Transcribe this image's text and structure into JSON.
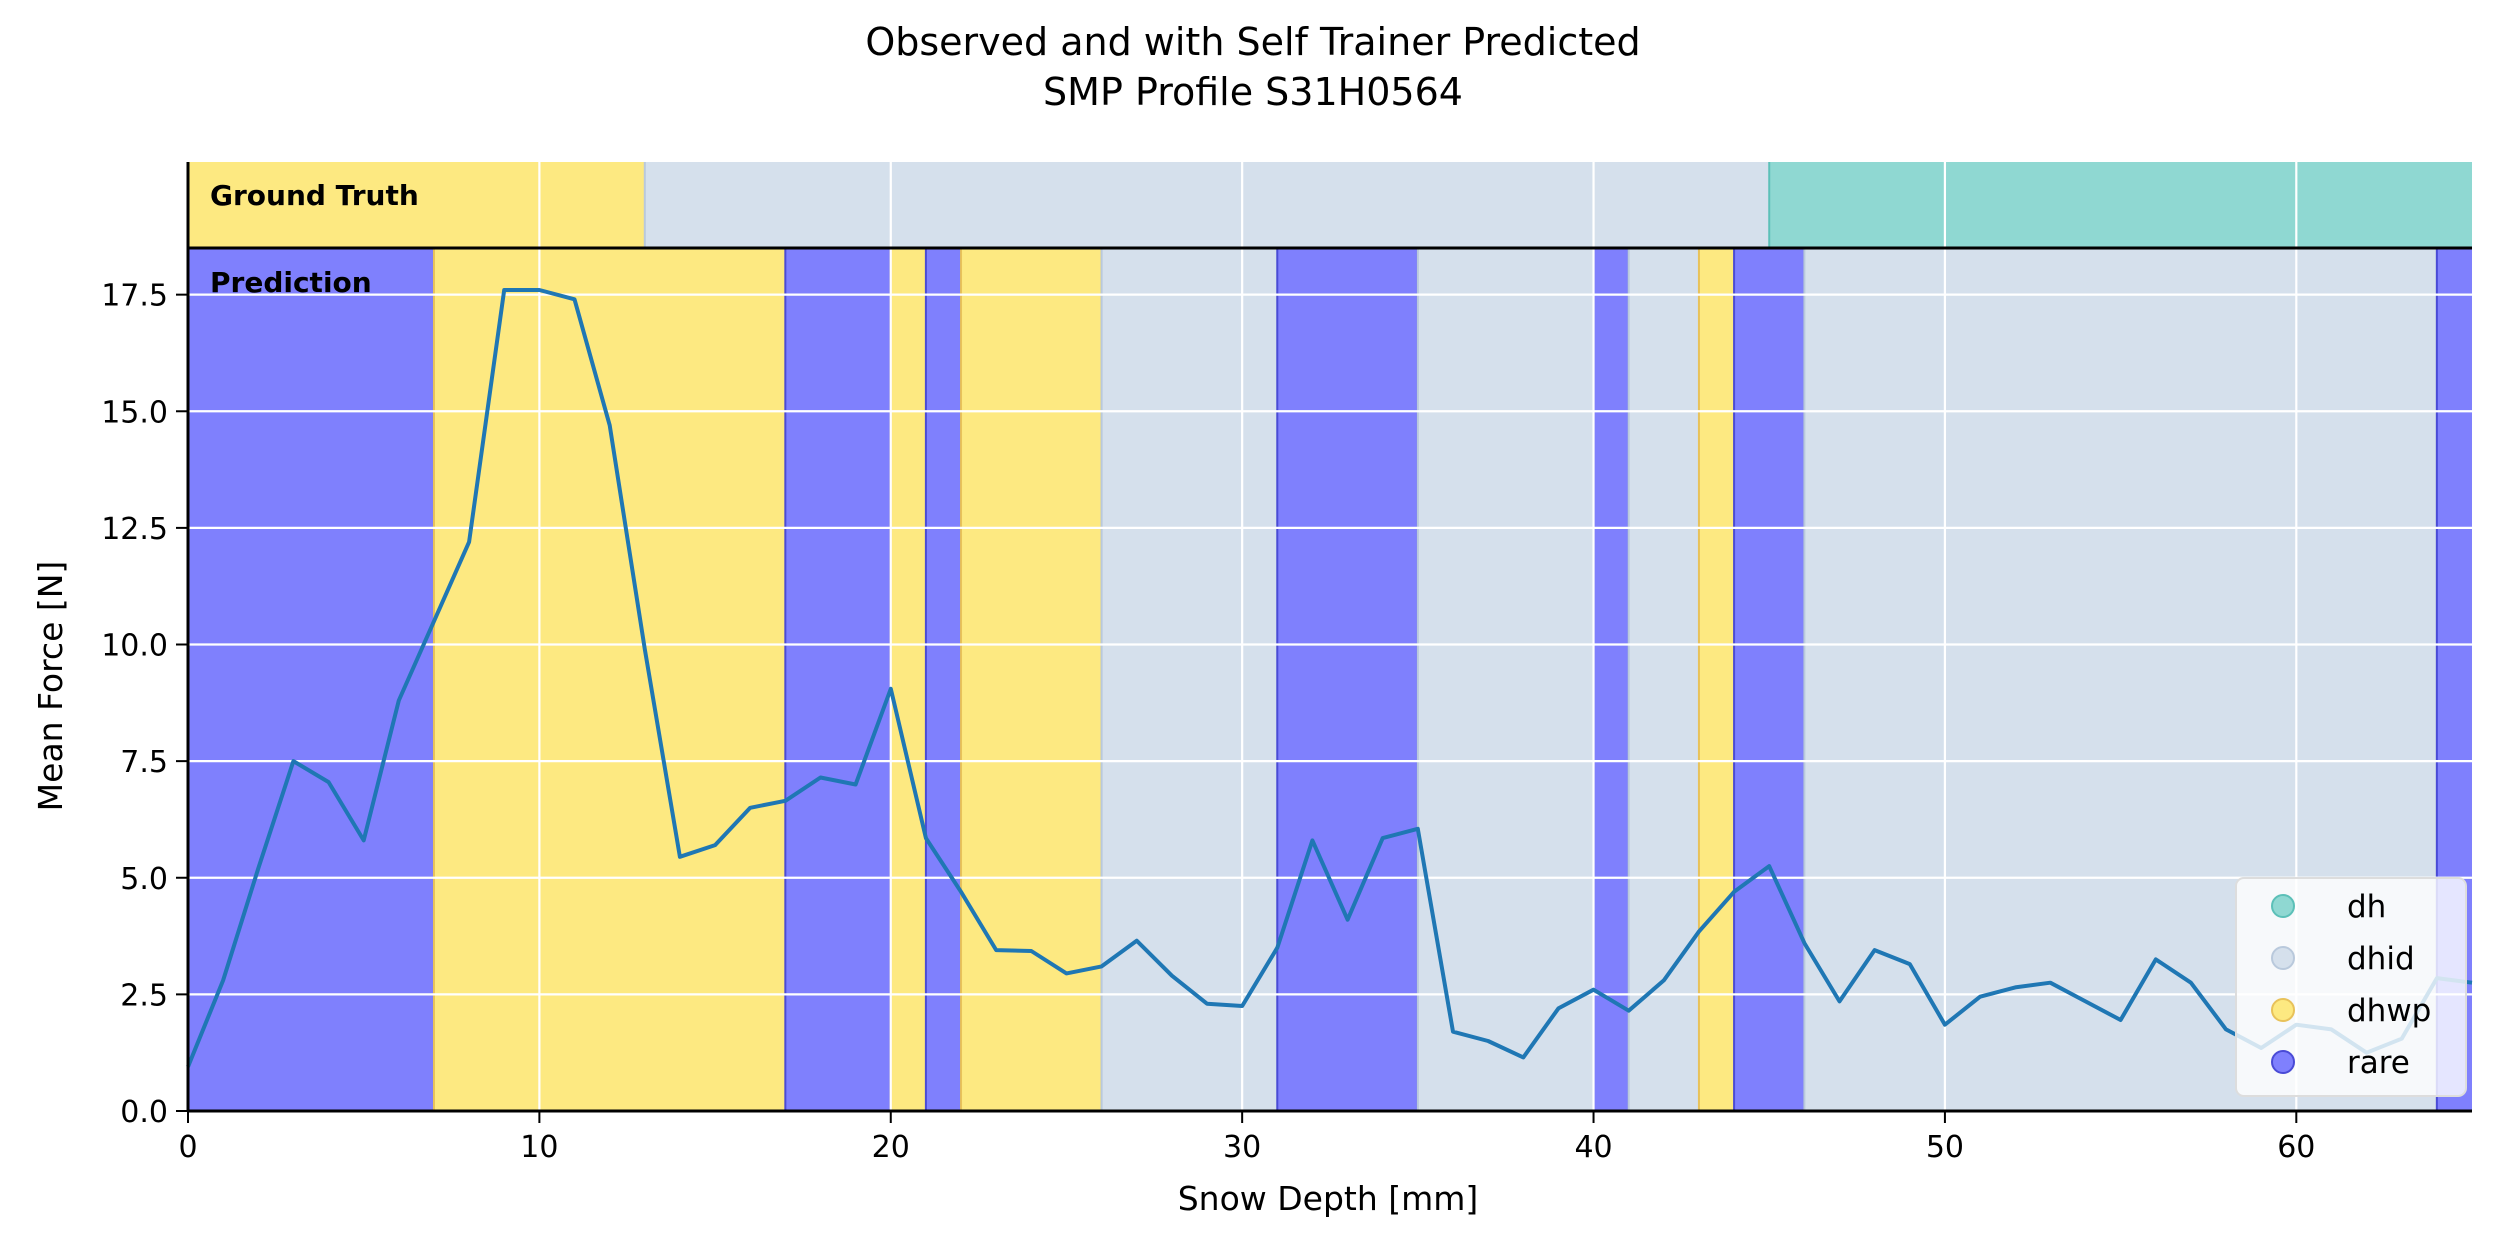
{
  "chart_data": {
    "type": "line",
    "title": "Observed and with Self Trainer Predicted",
    "subtitle": "SMP Profile S31H0564",
    "xlabel": "Snow Depth [mm]",
    "ylabel": "Mean Force [N]",
    "xlim": [
      0,
      65
    ],
    "ylim": [
      0,
      18.5
    ],
    "x_ticks": [
      0,
      10,
      20,
      30,
      40,
      50,
      60
    ],
    "y_ticks": [
      0.0,
      2.5,
      5.0,
      7.5,
      10.0,
      12.5,
      15.0,
      17.5
    ],
    "grid": true,
    "legend_position": "bottom-right",
    "line_color": "#1f77b4",
    "x": [
      0,
      1,
      2,
      3,
      4,
      5,
      6,
      7,
      8,
      9,
      10,
      11,
      12,
      13,
      14,
      15,
      16,
      17,
      18,
      19,
      20,
      21,
      22,
      23,
      24,
      25,
      26,
      27,
      28,
      29,
      30,
      31,
      32,
      33,
      34,
      35,
      36,
      37,
      38,
      39,
      40,
      41,
      42,
      43,
      44,
      45,
      46,
      47,
      48,
      49,
      50,
      51,
      52,
      53,
      54,
      55,
      56,
      57,
      58,
      59,
      60,
      61,
      62,
      63,
      64,
      65
    ],
    "values": [
      0.95,
      2.8,
      5.2,
      7.5,
      7.05,
      5.8,
      8.8,
      10.5,
      12.2,
      17.6,
      17.6,
      17.4,
      14.7,
      9.9,
      5.45,
      5.7,
      6.5,
      6.65,
      7.15,
      7.0,
      9.05,
      5.85,
      4.7,
      3.45,
      3.43,
      2.95,
      3.1,
      3.65,
      2.9,
      2.3,
      2.25,
      3.5,
      5.8,
      4.1,
      5.85,
      6.05,
      1.7,
      1.5,
      1.15,
      2.2,
      2.6,
      2.15,
      2.8,
      3.85,
      4.7,
      5.25,
      3.6,
      2.35,
      3.45,
      3.15,
      1.85,
      2.45,
      2.65,
      2.75,
      2.35,
      1.95,
      3.25,
      2.75,
      1.75,
      1.35,
      1.85,
      1.75,
      1.25,
      1.55,
      2.85,
      2.75
    ],
    "ground_truth_label": "Ground Truth",
    "prediction_label": "Prediction",
    "classes": [
      {
        "name": "dh",
        "color": "#8fd8d2"
      },
      {
        "name": "dhid",
        "color": "#d5e0ec"
      },
      {
        "name": "dhwp",
        "color": "#fde981"
      },
      {
        "name": "rare",
        "color": "#7f80fd"
      }
    ],
    "ground_truth_segments": [
      {
        "start": 0,
        "end": 13,
        "label": "dhwp"
      },
      {
        "start": 13,
        "end": 45,
        "label": "dhid"
      },
      {
        "start": 45,
        "end": 65,
        "label": "dh"
      }
    ],
    "prediction_segments": [
      {
        "start": 0,
        "end": 7,
        "label": "rare"
      },
      {
        "start": 7,
        "end": 17,
        "label": "dhwp"
      },
      {
        "start": 17,
        "end": 20,
        "label": "rare"
      },
      {
        "start": 20,
        "end": 21,
        "label": "dhwp"
      },
      {
        "start": 21,
        "end": 22,
        "label": "rare"
      },
      {
        "start": 22,
        "end": 26,
        "label": "dhwp"
      },
      {
        "start": 26,
        "end": 31,
        "label": "dhid"
      },
      {
        "start": 31,
        "end": 35,
        "label": "rare"
      },
      {
        "start": 35,
        "end": 40,
        "label": "dhid"
      },
      {
        "start": 40,
        "end": 41,
        "label": "rare"
      },
      {
        "start": 41,
        "end": 43,
        "label": "dhid"
      },
      {
        "start": 43,
        "end": 44,
        "label": "dhwp"
      },
      {
        "start": 44,
        "end": 46,
        "label": "rare"
      },
      {
        "start": 46,
        "end": 64,
        "label": "dhid"
      },
      {
        "start": 64,
        "end": 65,
        "label": "rare"
      }
    ]
  }
}
